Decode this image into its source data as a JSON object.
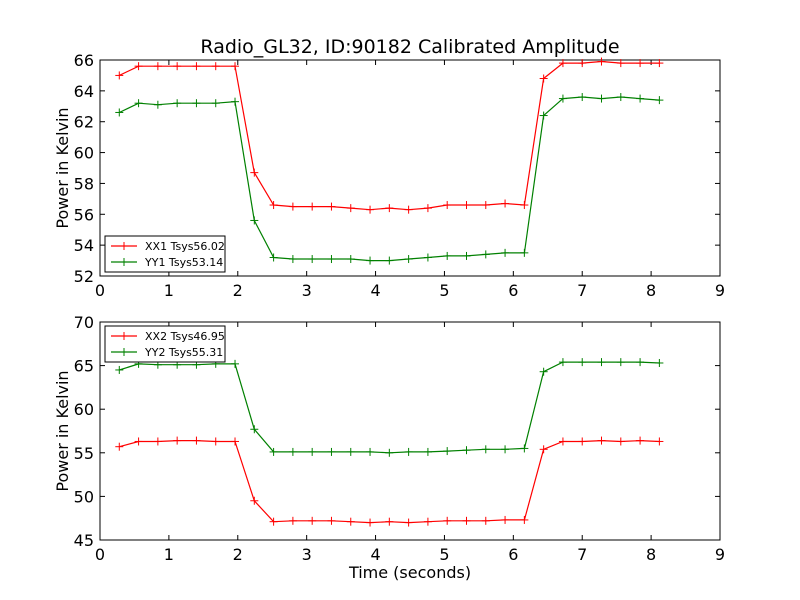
{
  "chart_data": [
    {
      "type": "line",
      "title": "Radio_GL32, ID:90182 Calibrated Amplitude",
      "xlabel": "",
      "ylabel": "Power in Kelvin",
      "xlim": [
        0,
        9
      ],
      "ylim": [
        52,
        66
      ],
      "xticks": [
        "0",
        "1",
        "2",
        "3",
        "4",
        "5",
        "6",
        "7",
        "8",
        "9"
      ],
      "yticks": [
        "52",
        "54",
        "56",
        "58",
        "60",
        "62",
        "64",
        "66"
      ],
      "legend_position": "lower left",
      "x": [
        0.28,
        0.56,
        0.84,
        1.12,
        1.4,
        1.68,
        1.96,
        2.24,
        2.52,
        2.8,
        3.08,
        3.36,
        3.64,
        3.92,
        4.2,
        4.48,
        4.76,
        5.04,
        5.32,
        5.6,
        5.88,
        6.16,
        6.44,
        6.72,
        7.0,
        7.28,
        7.56,
        7.84,
        8.12
      ],
      "series": [
        {
          "name": "XX1 Tsys56.02",
          "color": "#ff0000",
          "values": [
            65.0,
            65.6,
            65.6,
            65.6,
            65.6,
            65.6,
            65.6,
            58.7,
            56.6,
            56.5,
            56.5,
            56.5,
            56.4,
            56.3,
            56.4,
            56.3,
            56.4,
            56.6,
            56.6,
            56.6,
            56.7,
            56.6,
            64.8,
            65.8,
            65.8,
            65.9,
            65.8,
            65.8,
            65.8
          ]
        },
        {
          "name": "YY1 Tsys53.14",
          "color": "#008000",
          "values": [
            62.6,
            63.2,
            63.1,
            63.2,
            63.2,
            63.2,
            63.3,
            55.6,
            53.2,
            53.1,
            53.1,
            53.1,
            53.1,
            53.0,
            53.0,
            53.1,
            53.2,
            53.3,
            53.3,
            53.4,
            53.5,
            53.5,
            62.4,
            63.5,
            63.6,
            63.5,
            63.6,
            63.5,
            63.4
          ]
        }
      ]
    },
    {
      "type": "line",
      "title": "",
      "xlabel": "Time (seconds)",
      "ylabel": "Power in Kelvin",
      "xlim": [
        0,
        9
      ],
      "ylim": [
        45,
        70
      ],
      "xticks": [
        "0",
        "1",
        "2",
        "3",
        "4",
        "5",
        "6",
        "7",
        "8",
        "9"
      ],
      "yticks": [
        "45",
        "50",
        "55",
        "60",
        "65",
        "70"
      ],
      "legend_position": "upper left",
      "x": [
        0.28,
        0.56,
        0.84,
        1.12,
        1.4,
        1.68,
        1.96,
        2.24,
        2.52,
        2.8,
        3.08,
        3.36,
        3.64,
        3.92,
        4.2,
        4.48,
        4.76,
        5.04,
        5.32,
        5.6,
        5.88,
        6.16,
        6.44,
        6.72,
        7.0,
        7.28,
        7.56,
        7.84,
        8.12
      ],
      "series": [
        {
          "name": "XX2 Tsys46.95",
          "color": "#ff0000",
          "values": [
            55.7,
            56.3,
            56.3,
            56.4,
            56.4,
            56.3,
            56.3,
            49.5,
            47.1,
            47.2,
            47.2,
            47.2,
            47.1,
            47.0,
            47.1,
            47.0,
            47.1,
            47.2,
            47.2,
            47.2,
            47.3,
            47.3,
            55.4,
            56.3,
            56.3,
            56.4,
            56.3,
            56.4,
            56.3
          ]
        },
        {
          "name": "YY2 Tsys55.31",
          "color": "#008000",
          "values": [
            64.5,
            65.2,
            65.1,
            65.1,
            65.1,
            65.2,
            65.2,
            57.7,
            55.1,
            55.1,
            55.1,
            55.1,
            55.1,
            55.1,
            55.0,
            55.1,
            55.1,
            55.2,
            55.3,
            55.4,
            55.4,
            55.5,
            64.3,
            65.4,
            65.4,
            65.4,
            65.4,
            65.4,
            65.3
          ]
        }
      ]
    }
  ]
}
